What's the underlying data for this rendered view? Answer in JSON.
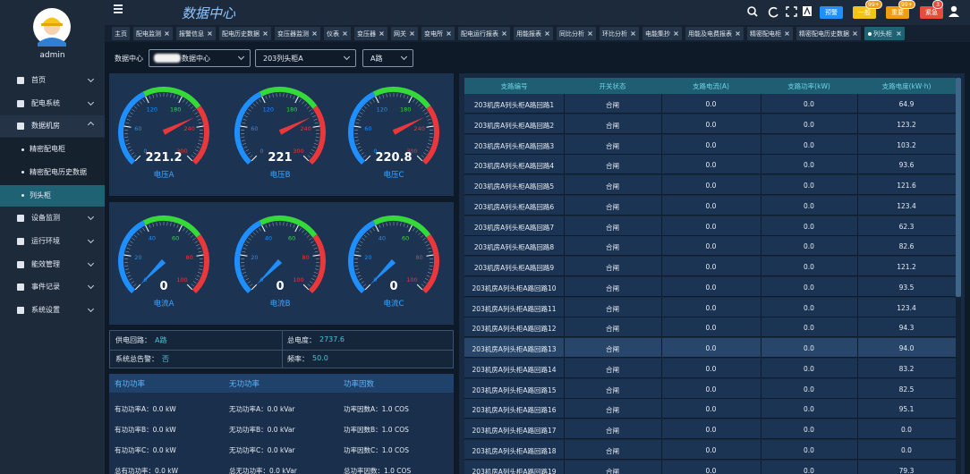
{
  "sidebar": {
    "user": "admin",
    "menu": [
      {
        "label": "首页"
      },
      {
        "label": "配电系统"
      },
      {
        "label": "数据机房",
        "children": [
          "精密配电柜",
          "精密配电历史数据",
          "列头柜"
        ]
      },
      {
        "label": "设备监测"
      },
      {
        "label": "运行环境"
      },
      {
        "label": "能效管理"
      },
      {
        "label": "事件记录"
      },
      {
        "label": "系统设置"
      }
    ]
  },
  "header": {
    "title": "数据中心",
    "buttons": [
      "预警",
      "一般",
      "重要",
      "紧急"
    ],
    "badges": [
      "99+",
      "99+",
      "3"
    ]
  },
  "tabs": [
    "主页",
    "配电监测",
    "报警信息",
    "配电历史数据",
    "变压器监测",
    "仪表",
    "变压器",
    "网关",
    "变电所",
    "配电运行报表",
    "用能报表",
    "同比分析",
    "环比分析",
    "电能集抄",
    "用能及电费报表",
    "精密配电柜",
    "精密配电历史数据",
    "列头柜"
  ],
  "filters": {
    "label": "数据中心",
    "selects": [
      "数据中心",
      "203列头柜A",
      "A路"
    ]
  },
  "gauges": [
    {
      "label": "电压A",
      "value": 221.2,
      "range": [
        0,
        300
      ],
      "ticks": [
        0,
        60,
        120,
        180,
        240,
        300
      ]
    },
    {
      "label": "电压B",
      "value": 221,
      "range": [
        0,
        300
      ],
      "ticks": [
        0,
        60,
        120,
        180,
        240,
        300
      ]
    },
    {
      "label": "电压C",
      "value": 220.8,
      "range": [
        0,
        300
      ],
      "ticks": [
        0,
        60,
        120,
        180,
        240,
        300
      ]
    },
    {
      "label": "电流A",
      "value": 0,
      "range": [
        0,
        100
      ],
      "ticks": [
        0,
        20,
        40,
        60,
        80,
        100
      ]
    },
    {
      "label": "电流B",
      "value": 0,
      "range": [
        0,
        100
      ],
      "ticks": [
        0,
        20,
        40,
        60,
        80,
        100
      ]
    },
    {
      "label": "电流C",
      "value": 0,
      "range": [
        0,
        100
      ],
      "ticks": [
        0,
        20,
        40,
        60,
        80,
        100
      ]
    }
  ],
  "info": [
    [
      "供电回路：",
      "A路"
    ],
    [
      "总电度：",
      "2737.6"
    ],
    [
      "系统总告警：",
      "否"
    ],
    [
      "频率：",
      "50.0"
    ]
  ],
  "power": {
    "headers": [
      "有功功率",
      "无功功率",
      "功率因数"
    ],
    "rows": [
      [
        "有功功率A：0.0 kW",
        "无功功率A：0.0 kVar",
        "功率因数A：1.0 COS"
      ],
      [
        "有功功率B：0.0 kW",
        "无功功率B：0.0 kVar",
        "功率因数B：1.0 COS"
      ],
      [
        "有功功率C：0.0 kW",
        "无功功率C：0.0 kVar",
        "功率因数C：1.0 COS"
      ],
      [
        "总有功功率：0.0 kW",
        "总无功功率：0.0 kVar",
        "总功率因数：1.0 COS"
      ]
    ]
  },
  "table": {
    "headers": [
      "支路编号",
      "开关状态",
      "支路电流(A)",
      "支路功率(kW)",
      "支路电度(kW·h)"
    ],
    "rows": [
      [
        "203机房A列头柜A路回路1",
        "合闸",
        "0.0",
        "0.0",
        "64.9"
      ],
      [
        "203机房A列头柜A路回路2",
        "合闸",
        "0.0",
        "0.0",
        "123.2"
      ],
      [
        "203机房A列头柜A路回路3",
        "合闸",
        "0.0",
        "0.0",
        "103.2"
      ],
      [
        "203机房A列头柜A路回路4",
        "合闸",
        "0.0",
        "0.0",
        "93.6"
      ],
      [
        "203机房A列头柜A路回路5",
        "合闸",
        "0.0",
        "0.0",
        "121.6"
      ],
      [
        "203机房A列头柜A路回路6",
        "合闸",
        "0.0",
        "0.0",
        "123.4"
      ],
      [
        "203机房A列头柜A路回路7",
        "合闸",
        "0.0",
        "0.0",
        "62.3"
      ],
      [
        "203机房A列头柜A路回路8",
        "合闸",
        "0.0",
        "0.0",
        "82.6"
      ],
      [
        "203机房A列头柜A路回路9",
        "合闸",
        "0.0",
        "0.0",
        "121.2"
      ],
      [
        "203机房A列头柜A路回路10",
        "合闸",
        "0.0",
        "0.0",
        "93.5"
      ],
      [
        "203机房A列头柜A路回路11",
        "合闸",
        "0.0",
        "0.0",
        "123.4"
      ],
      [
        "203机房A列头柜A路回路12",
        "合闸",
        "0.0",
        "0.0",
        "94.3"
      ],
      [
        "203机房A列头柜A路回路13",
        "合闸",
        "0.0",
        "0.0",
        "94.0"
      ],
      [
        "203机房A列头柜A路回路14",
        "合闸",
        "0.0",
        "0.0",
        "83.2"
      ],
      [
        "203机房A列头柜A路回路15",
        "合闸",
        "0.0",
        "0.0",
        "82.5"
      ],
      [
        "203机房A列头柜A路回路16",
        "合闸",
        "0.0",
        "0.0",
        "95.1"
      ],
      [
        "203机房A列头柜A路回路17",
        "合闸",
        "0.0",
        "0.0",
        "0.0"
      ],
      [
        "203机房A列头柜A路回路18",
        "合闸",
        "0.0",
        "0.0",
        "0.0"
      ],
      [
        "203机房A列头柜A路回路19",
        "合闸",
        "0.0",
        "0.0",
        "79.3"
      ]
    ]
  }
}
